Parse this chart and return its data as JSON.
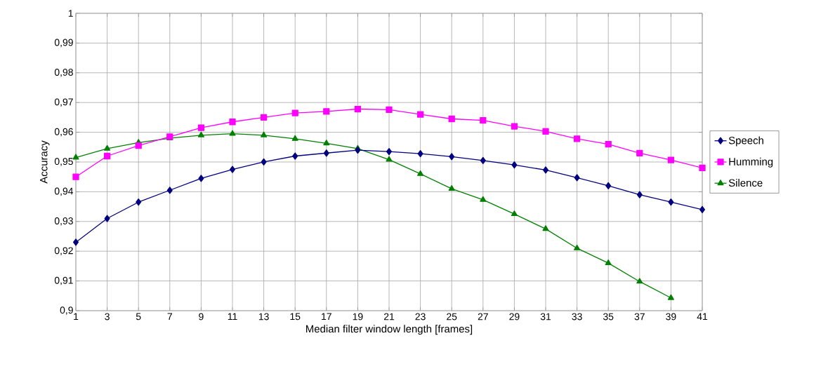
{
  "chart_data": {
    "type": "line",
    "xlabel": "Median filter window length [frames]",
    "ylabel": "Accuracy",
    "categories": [
      "1",
      "3",
      "5",
      "7",
      "9",
      "11",
      "13",
      "15",
      "17",
      "19",
      "21",
      "23",
      "25",
      "27",
      "29",
      "31",
      "33",
      "35",
      "37",
      "39",
      "41"
    ],
    "series": [
      {
        "name": "Speech",
        "color": "#000080",
        "marker": "diamond",
        "values": [
          0.923,
          0.931,
          0.9365,
          0.9405,
          0.9445,
          0.9475,
          0.95,
          0.952,
          0.953,
          0.954,
          0.9535,
          0.9528,
          0.9518,
          0.9505,
          0.949,
          0.9473,
          0.9447,
          0.942,
          0.939,
          0.9365,
          0.934
        ]
      },
      {
        "name": "Humming",
        "color": "#ff00ff",
        "marker": "square",
        "values": [
          0.945,
          0.952,
          0.9555,
          0.9585,
          0.9615,
          0.9635,
          0.965,
          0.9665,
          0.967,
          0.9678,
          0.9676,
          0.966,
          0.9645,
          0.964,
          0.962,
          0.9603,
          0.9578,
          0.956,
          0.953,
          0.9507,
          0.948
        ]
      },
      {
        "name": "Silence",
        "color": "#008000",
        "marker": "triangle",
        "values": [
          0.9515,
          0.9545,
          0.9565,
          0.958,
          0.959,
          0.9595,
          0.959,
          0.9578,
          0.9563,
          0.9545,
          0.9508,
          0.946,
          0.941,
          0.9373,
          0.9325,
          0.9275,
          0.921,
          0.916,
          0.9098,
          0.9043,
          null
        ]
      }
    ],
    "ylim": [
      0.9,
      1
    ],
    "yticks": [
      {
        "value": 0.9,
        "label": "0,9"
      },
      {
        "value": 0.91,
        "label": "0,91"
      },
      {
        "value": 0.92,
        "label": "0,92"
      },
      {
        "value": 0.93,
        "label": "0,93"
      },
      {
        "value": 0.94,
        "label": "0,94"
      },
      {
        "value": 0.95,
        "label": "0,95"
      },
      {
        "value": 0.96,
        "label": "0,96"
      },
      {
        "value": 0.97,
        "label": "0,97"
      },
      {
        "value": 0.98,
        "label": "0,98"
      },
      {
        "value": 0.99,
        "label": "0,99"
      },
      1
    ],
    "grid": true,
    "legend": "right",
    "line_style": "solid"
  }
}
